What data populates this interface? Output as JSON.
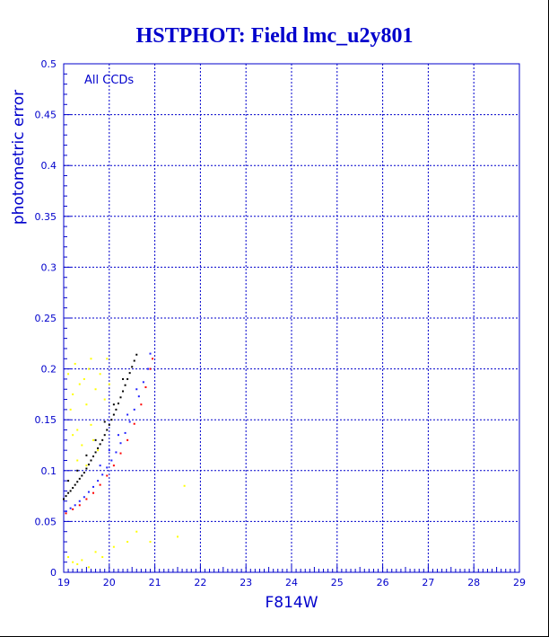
{
  "chart_data": {
    "type": "scatter",
    "title": "HSTPHOT: Field lmc_u2y801",
    "xlabel": "F814W",
    "ylabel": "photometric error",
    "annotation": "All CCDs",
    "xlim": [
      19,
      29
    ],
    "ylim": [
      0,
      0.5
    ],
    "x_ticks": [
      "19",
      "20",
      "21",
      "22",
      "23",
      "24",
      "25",
      "26",
      "27",
      "28",
      "29"
    ],
    "y_ticks": [
      "0",
      "0.05",
      "0.1",
      "0.15",
      "0.2",
      "0.25",
      "0.3",
      "0.35",
      "0.4",
      "0.45",
      "0.5"
    ],
    "grid": true,
    "colors": {
      "axis": "#0000cc",
      "grid": "#0000cc",
      "title": "#0000cc"
    },
    "series": [
      {
        "color": "#ffff00",
        "points": [
          [
            19.1,
            0.195
          ],
          [
            19.15,
            0.16
          ],
          [
            19.2,
            0.175
          ],
          [
            19.25,
            0.205
          ],
          [
            19.3,
            0.14
          ],
          [
            19.35,
            0.185
          ],
          [
            19.4,
            0.125
          ],
          [
            19.45,
            0.19
          ],
          [
            19.5,
            0.165
          ],
          [
            19.55,
            0.2
          ],
          [
            19.6,
            0.145
          ],
          [
            19.7,
            0.18
          ],
          [
            19.75,
            0.12
          ],
          [
            19.8,
            0.195
          ],
          [
            19.9,
            0.17
          ],
          [
            20.0,
            0.185
          ],
          [
            19.2,
            0.135
          ],
          [
            19.3,
            0.11
          ],
          [
            19.5,
            0.105
          ],
          [
            19.65,
            0.13
          ],
          [
            19.1,
            0.015
          ],
          [
            19.2,
            0.01
          ],
          [
            19.3,
            0.008
          ],
          [
            19.4,
            0.012
          ],
          [
            19.55,
            0.005
          ],
          [
            19.7,
            0.02
          ],
          [
            19.85,
            0.015
          ],
          [
            20.1,
            0.025
          ],
          [
            20.4,
            0.03
          ],
          [
            20.6,
            0.04
          ],
          [
            20.9,
            0.03
          ],
          [
            21.5,
            0.035
          ],
          [
            21.65,
            0.085
          ],
          [
            19.95,
            0.21
          ],
          [
            19.6,
            0.21
          ]
        ]
      },
      {
        "color": "#000000",
        "points": [
          [
            19.0,
            0.072
          ],
          [
            19.05,
            0.075
          ],
          [
            19.1,
            0.078
          ],
          [
            19.15,
            0.08
          ],
          [
            19.2,
            0.083
          ],
          [
            19.25,
            0.086
          ],
          [
            19.3,
            0.089
          ],
          [
            19.35,
            0.092
          ],
          [
            19.4,
            0.095
          ],
          [
            19.45,
            0.098
          ],
          [
            19.5,
            0.102
          ],
          [
            19.55,
            0.106
          ],
          [
            19.6,
            0.11
          ],
          [
            19.65,
            0.114
          ],
          [
            19.7,
            0.118
          ],
          [
            19.75,
            0.122
          ],
          [
            19.8,
            0.126
          ],
          [
            19.85,
            0.13
          ],
          [
            19.9,
            0.135
          ],
          [
            19.95,
            0.14
          ],
          [
            20.0,
            0.145
          ],
          [
            20.05,
            0.15
          ],
          [
            20.1,
            0.155
          ],
          [
            20.15,
            0.16
          ],
          [
            20.2,
            0.166
          ],
          [
            20.25,
            0.172
          ],
          [
            20.3,
            0.178
          ],
          [
            20.35,
            0.184
          ],
          [
            20.4,
            0.19
          ],
          [
            20.45,
            0.196
          ],
          [
            20.5,
            0.202
          ],
          [
            20.55,
            0.208
          ],
          [
            20.6,
            0.214
          ],
          [
            19.1,
            0.09
          ],
          [
            19.3,
            0.1
          ],
          [
            19.5,
            0.115
          ],
          [
            19.7,
            0.13
          ],
          [
            19.9,
            0.148
          ],
          [
            20.1,
            0.165
          ],
          [
            20.3,
            0.19
          ]
        ]
      },
      {
        "color": "#2222ff",
        "points": [
          [
            19.05,
            0.06
          ],
          [
            19.15,
            0.063
          ],
          [
            19.25,
            0.066
          ],
          [
            19.35,
            0.07
          ],
          [
            19.45,
            0.074
          ],
          [
            19.55,
            0.079
          ],
          [
            19.65,
            0.084
          ],
          [
            19.75,
            0.09
          ],
          [
            19.85,
            0.096
          ],
          [
            19.95,
            0.103
          ],
          [
            20.05,
            0.11
          ],
          [
            20.15,
            0.118
          ],
          [
            20.25,
            0.127
          ],
          [
            20.35,
            0.137
          ],
          [
            20.45,
            0.148
          ],
          [
            20.55,
            0.16
          ],
          [
            20.65,
            0.173
          ],
          [
            20.75,
            0.187
          ],
          [
            20.85,
            0.2
          ],
          [
            20.9,
            0.215
          ],
          [
            19.8,
            0.105
          ],
          [
            20.0,
            0.12
          ],
          [
            20.2,
            0.135
          ],
          [
            20.4,
            0.155
          ],
          [
            20.6,
            0.18
          ]
        ]
      },
      {
        "color": "#ff0000",
        "points": [
          [
            19.05,
            0.058
          ],
          [
            19.2,
            0.062
          ],
          [
            19.35,
            0.066
          ],
          [
            19.5,
            0.072
          ],
          [
            19.65,
            0.078
          ],
          [
            19.8,
            0.086
          ],
          [
            19.95,
            0.095
          ],
          [
            20.1,
            0.105
          ],
          [
            20.25,
            0.117
          ],
          [
            20.4,
            0.13
          ],
          [
            20.55,
            0.146
          ],
          [
            20.7,
            0.165
          ],
          [
            20.8,
            0.182
          ],
          [
            20.9,
            0.2
          ],
          [
            20.95,
            0.21
          ]
        ]
      }
    ]
  }
}
